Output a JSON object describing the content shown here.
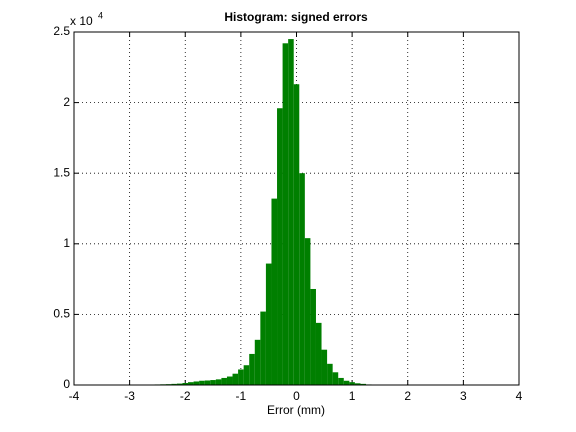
{
  "chart_data": {
    "type": "histogram",
    "title": "Histogram: signed errors",
    "x_label": "Error (mm)",
    "y_multiplier": "x 10",
    "y_exponent": "4",
    "bins": [
      -2.75,
      -2.65,
      -2.55,
      -2.45,
      -2.35,
      -2.25,
      -2.15,
      -2.05,
      -1.95,
      -1.85,
      -1.75,
      -1.65,
      -1.55,
      -1.45,
      -1.35,
      -1.25,
      -1.15,
      -1.05,
      -0.95,
      -0.85,
      -0.75,
      -0.65,
      -0.55,
      -0.45,
      -0.35,
      -0.25,
      -0.15,
      -0.05,
      0.05,
      0.15,
      0.25,
      0.35,
      0.45,
      0.55,
      0.65,
      0.75,
      0.85,
      0.95,
      1.05,
      1.15,
      1.25,
      1.35,
      1.45
    ],
    "values": [
      0.003,
      0.003,
      0.004,
      0.005,
      0.006,
      0.008,
      0.01,
      0.014,
      0.02,
      0.025,
      0.03,
      0.032,
      0.035,
      0.04,
      0.05,
      0.06,
      0.08,
      0.11,
      0.14,
      0.22,
      0.32,
      0.52,
      0.86,
      1.32,
      1.96,
      2.42,
      2.45,
      2.13,
      1.5,
      1.04,
      0.68,
      0.44,
      0.25,
      0.15,
      0.09,
      0.05,
      0.03,
      0.02,
      0.012,
      0.008,
      0.004,
      0.002
    ],
    "color": "#007f00",
    "xlim": [
      -4,
      4
    ],
    "xticks": [
      -4,
      -3,
      -2,
      -1,
      0,
      1,
      2,
      3,
      4
    ],
    "ylim": [
      0,
      2.5
    ],
    "yticks": [
      0,
      0.5,
      1,
      1.5,
      2,
      2.5
    ],
    "grid": true
  }
}
